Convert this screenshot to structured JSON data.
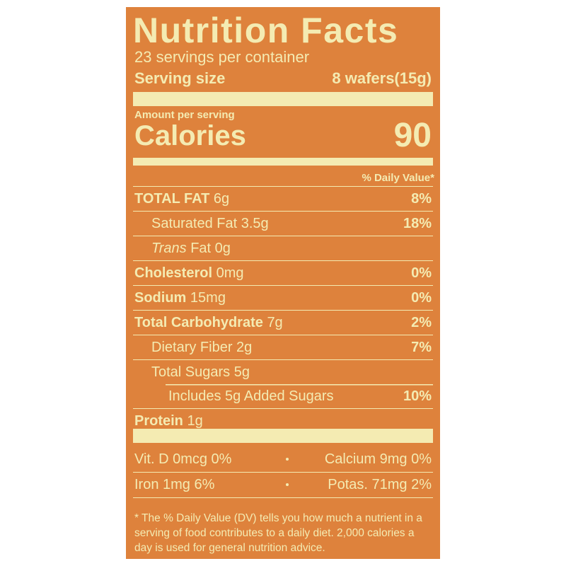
{
  "title": "Nutrition Facts",
  "servings": "23 servings per container",
  "serving_size": {
    "label": "Serving size",
    "value": "8 wafers(15g)"
  },
  "amount_per_serving": "Amount per serving",
  "calories": {
    "label": "Calories",
    "value": "90"
  },
  "daily_value_header": "% Daily Value*",
  "nutrients": [
    {
      "name": "TOTAL FAT",
      "amount": "6g",
      "dv": "8%",
      "bold": true,
      "indent": 0
    },
    {
      "name": "Saturated Fat",
      "amount": "3.5g",
      "dv": "18%",
      "bold": false,
      "indent": 1
    },
    {
      "italic": "Trans",
      "name": "Fat",
      "amount": "0g",
      "bold": false,
      "indent": 1
    },
    {
      "name": "Cholesterol",
      "amount": "0mg",
      "dv": "0%",
      "bold": true,
      "indent": 0
    },
    {
      "name": "Sodium",
      "amount": "15mg",
      "dv": "0%",
      "bold": true,
      "indent": 0
    },
    {
      "name": "Total Carbohydrate",
      "amount": "7g",
      "dv": "2%",
      "bold": true,
      "indent": 0
    },
    {
      "name": "Dietary Fiber",
      "amount": "2g",
      "dv": "7%",
      "bold": false,
      "indent": 1
    },
    {
      "name": "Total Sugars",
      "amount": "5g",
      "bold": false,
      "indent": 1
    },
    {
      "name": "Includes 5g Added Sugars",
      "dv": "10%",
      "bold": false,
      "indent": 2
    },
    {
      "name": "Protein",
      "amount": "1g",
      "bold": true,
      "indent": 0
    }
  ],
  "vitamins": [
    [
      "Vit. D 0mcg 0%",
      "Calcium 9mg 0%"
    ],
    [
      "Iron 1mg 6%",
      "Potas. 71mg 2%"
    ]
  ],
  "footnote": "* The % Daily Value (DV) tells you how much a nutrient in a serving of food contributes to a daily diet. 2,000 calories a day is used for general nutrition advice."
}
